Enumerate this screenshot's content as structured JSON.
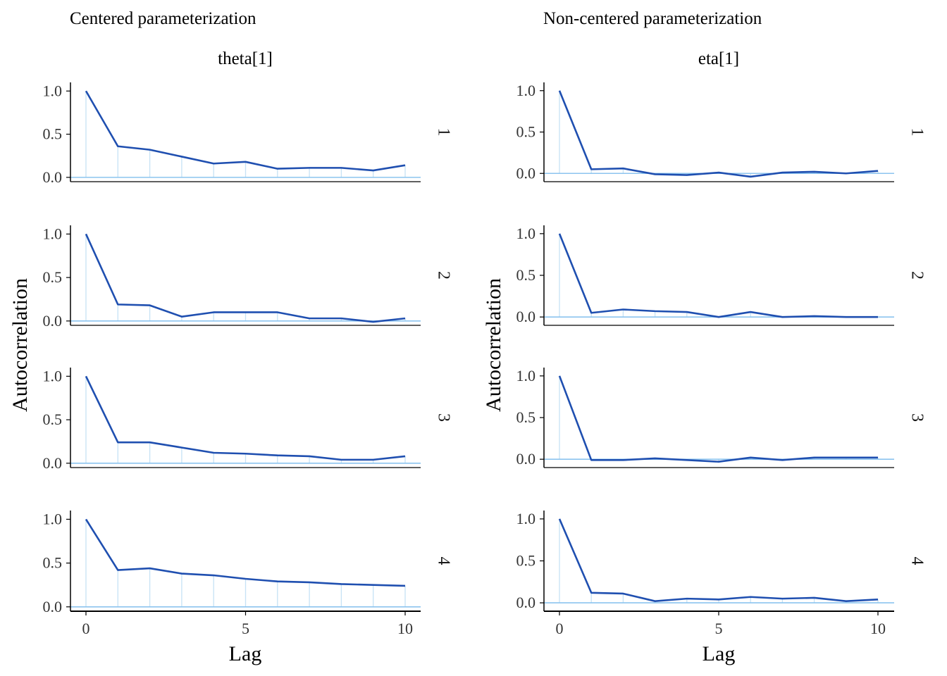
{
  "colors": {
    "line": "#1f4fb0",
    "hline": "#8cc4ef",
    "stem": "#c6e2f5",
    "axis": "#000000",
    "tick_text": "#333333"
  },
  "chart_data": [
    {
      "type": "line",
      "title": "Centered parameterization",
      "facet_title": "theta[1]",
      "xlabel": "Lag",
      "ylabel": "Autocorrelation",
      "xlim": [
        0,
        10
      ],
      "ylim": [
        -0.05,
        1.1
      ],
      "x_ticks": [
        0,
        5,
        10
      ],
      "y_ticks": [
        0.0,
        0.5,
        1.0
      ],
      "x": [
        0,
        1,
        2,
        3,
        4,
        5,
        6,
        7,
        8,
        9,
        10
      ],
      "panel_labels": [
        "1",
        "2",
        "3",
        "4"
      ],
      "series": [
        {
          "values": [
            1.0,
            0.36,
            0.32,
            0.24,
            0.16,
            0.18,
            0.1,
            0.11,
            0.11,
            0.08,
            0.14
          ]
        },
        {
          "values": [
            1.0,
            0.19,
            0.18,
            0.05,
            0.1,
            0.1,
            0.1,
            0.03,
            0.03,
            -0.01,
            0.03
          ]
        },
        {
          "values": [
            1.0,
            0.24,
            0.24,
            0.18,
            0.12,
            0.11,
            0.09,
            0.08,
            0.04,
            0.04,
            0.08
          ]
        },
        {
          "values": [
            1.0,
            0.42,
            0.44,
            0.38,
            0.36,
            0.32,
            0.29,
            0.28,
            0.26,
            0.25,
            0.24
          ]
        }
      ]
    },
    {
      "type": "line",
      "title": "Non-centered parameterization",
      "facet_title": "eta[1]",
      "xlabel": "Lag",
      "ylabel": "Autocorrelation",
      "xlim": [
        0,
        10
      ],
      "ylim": [
        -0.1,
        1.1
      ],
      "x_ticks": [
        0,
        5,
        10
      ],
      "y_ticks": [
        0.0,
        0.5,
        1.0
      ],
      "x": [
        0,
        1,
        2,
        3,
        4,
        5,
        6,
        7,
        8,
        9,
        10
      ],
      "panel_labels": [
        "1",
        "2",
        "3",
        "4"
      ],
      "series": [
        {
          "values": [
            1.0,
            0.05,
            0.06,
            -0.01,
            -0.02,
            0.01,
            -0.04,
            0.01,
            0.02,
            0.0,
            0.03
          ]
        },
        {
          "values": [
            1.0,
            0.05,
            0.09,
            0.07,
            0.06,
            0.0,
            0.06,
            0.0,
            0.01,
            0.0,
            0.0
          ]
        },
        {
          "values": [
            1.0,
            -0.01,
            -0.01,
            0.01,
            -0.01,
            -0.03,
            0.02,
            -0.01,
            0.02,
            0.02,
            0.02
          ]
        },
        {
          "values": [
            1.0,
            0.12,
            0.11,
            0.02,
            0.05,
            0.04,
            0.07,
            0.05,
            0.06,
            0.02,
            0.04
          ]
        }
      ]
    }
  ]
}
